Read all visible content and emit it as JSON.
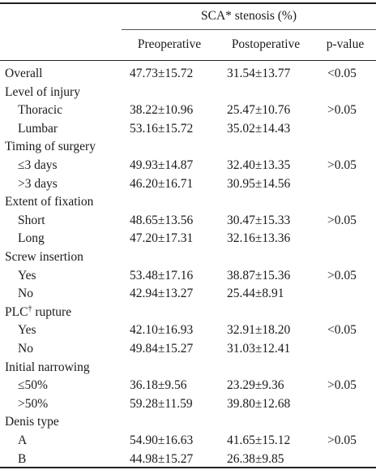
{
  "header": {
    "group_label": "SCA* stenosis (%)",
    "col_pre": "Preoperative",
    "col_post": "Postoperative",
    "col_p": "p-value"
  },
  "rows": [
    {
      "label": "Overall",
      "pre": "47.73±15.72",
      "post": "31.54±13.77",
      "p": "<0.05",
      "sub": false
    },
    {
      "label": "Level of injury",
      "pre": "",
      "post": "",
      "p": "",
      "sub": false
    },
    {
      "label": "Thoracic",
      "pre": "38.22±10.96",
      "post": "25.47±10.76",
      "p": ">0.05",
      "sub": true
    },
    {
      "label": "Lumbar",
      "pre": "53.16±15.72",
      "post": "35.02±14.43",
      "p": "",
      "sub": true
    },
    {
      "label": "Timing of surgery",
      "pre": "",
      "post": "",
      "p": "",
      "sub": false
    },
    {
      "label": "≤3 days",
      "pre": "49.93±14.87",
      "post": "32.40±13.35",
      "p": ">0.05",
      "sub": true
    },
    {
      "label": ">3 days",
      "pre": "46.20±16.71",
      "post": "30.95±14.56",
      "p": "",
      "sub": true
    },
    {
      "label": "Extent of fixation",
      "pre": "",
      "post": "",
      "p": "",
      "sub": false
    },
    {
      "label": "Short",
      "pre": "48.65±13.56",
      "post": "30.47±15.33",
      "p": ">0.05",
      "sub": true
    },
    {
      "label": "Long",
      "pre": "47.20±17.31",
      "post": "32.16±13.36",
      "p": "",
      "sub": true
    },
    {
      "label": "Screw insertion",
      "pre": "",
      "post": "",
      "p": "",
      "sub": false
    },
    {
      "label": "Yes",
      "pre": "53.48±17.16",
      "post": "38.87±15.36",
      "p": ">0.05",
      "sub": true
    },
    {
      "label": "No",
      "pre": "42.94±13.27",
      "post": "25.44±8.91",
      "p": "",
      "sub": true
    },
    {
      "label": "PLC",
      "label_sup": "†",
      "label_after": " rupture",
      "pre": "",
      "post": "",
      "p": "",
      "sub": false
    },
    {
      "label": "Yes",
      "pre": "42.10±16.93",
      "post": "32.91±18.20",
      "p": "<0.05",
      "sub": true
    },
    {
      "label": "No",
      "pre": "49.84±15.27",
      "post": "31.03±12.41",
      "p": "",
      "sub": true
    },
    {
      "label": "Initial narrowing",
      "pre": "",
      "post": "",
      "p": "",
      "sub": false
    },
    {
      "label": "≤50%",
      "pre": "36.18±9.56",
      "post": "23.29±9.36",
      "p": ">0.05",
      "sub": true
    },
    {
      "label": ">50%",
      "pre": "59.28±11.59",
      "post": "39.80±12.68",
      "p": "",
      "sub": true
    },
    {
      "label": "Denis type",
      "pre": "",
      "post": "",
      "p": "",
      "sub": false
    },
    {
      "label": "A",
      "pre": "54.90±16.63",
      "post": "41.65±15.12",
      "p": ">0.05",
      "sub": true
    },
    {
      "label": "B",
      "pre": "44.98±15.27",
      "post": "26.38±9.85",
      "p": "",
      "sub": true
    }
  ]
}
